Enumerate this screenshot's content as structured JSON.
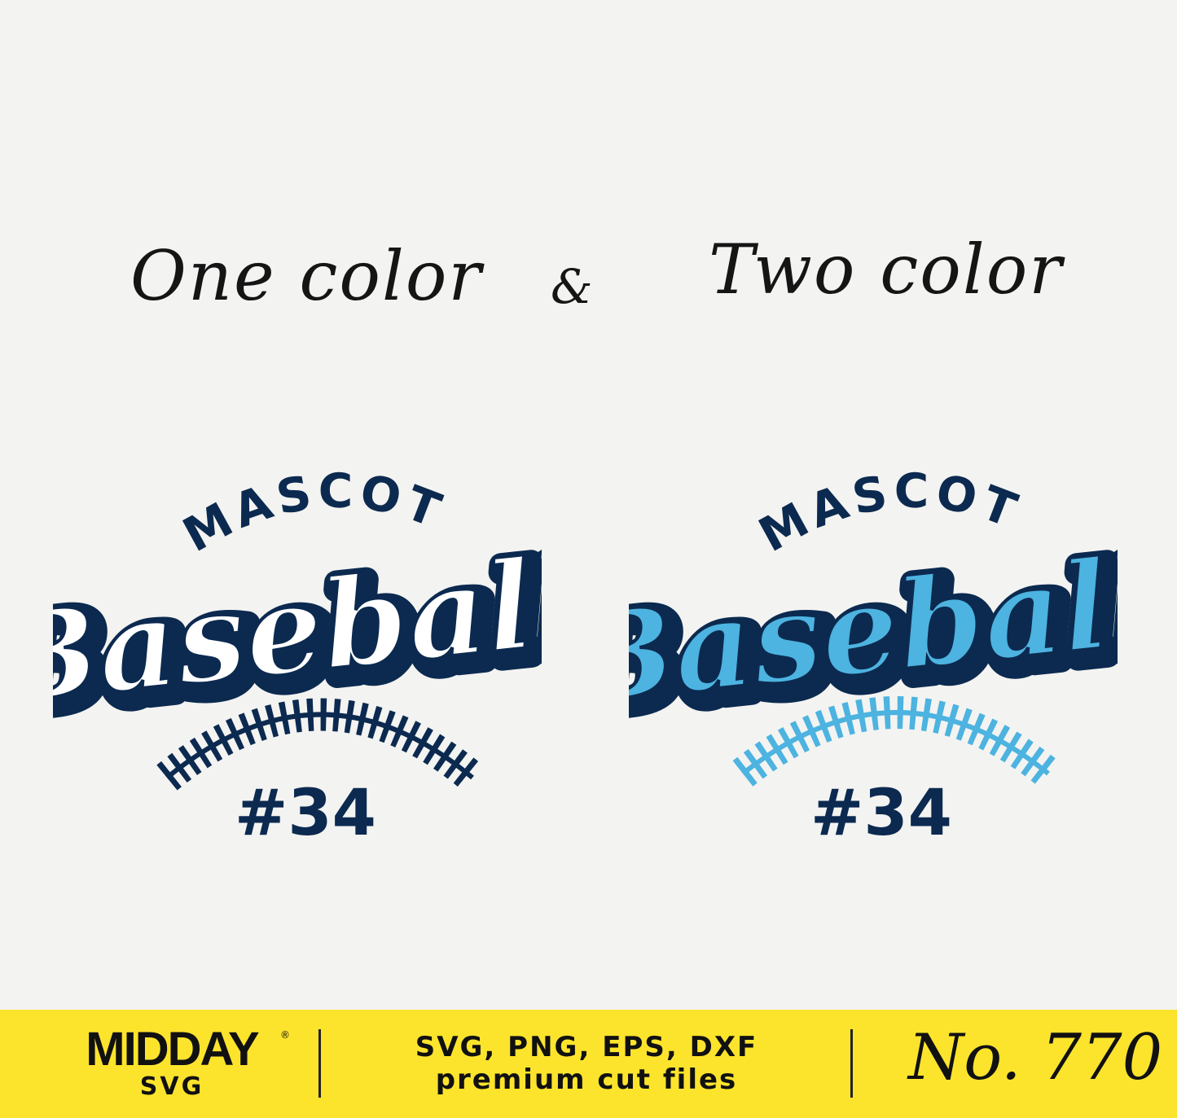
{
  "headings": {
    "left": "One color",
    "amp": "&",
    "right": "Two color"
  },
  "design": {
    "top": "MASCOT",
    "main": "Baseball",
    "number": "#34"
  },
  "colors": {
    "navy": "#0c2a50",
    "light_blue": "#4db3e0",
    "white": "#ffffff",
    "banner": "#fde42c"
  },
  "footer": {
    "brand": "MIDDAY",
    "brand_sub": "SVG",
    "registered": "®",
    "formats": "SVG, PNG, EPS,  DXF",
    "tagline": "premium cut files",
    "product_number": "No. 770"
  }
}
